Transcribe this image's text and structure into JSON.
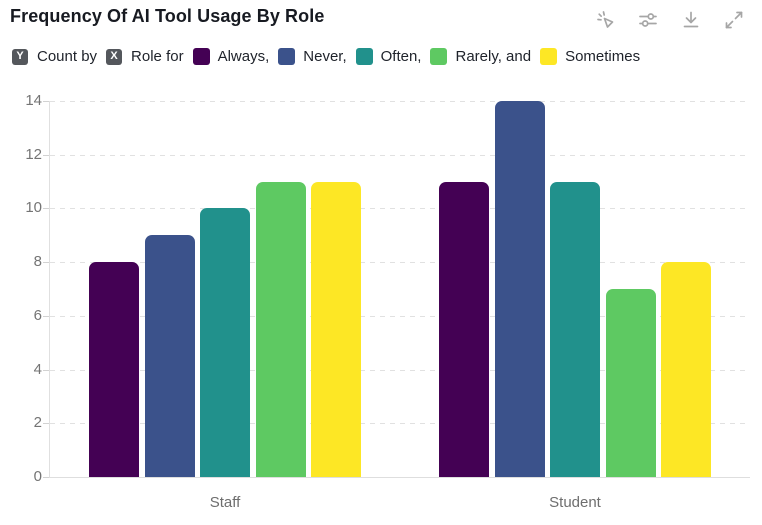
{
  "header": {
    "title": "Frequency Of AI Tool Usage By Role",
    "toolbar": {
      "icons": [
        {
          "name": "pointer-spark-icon",
          "meaning": "interact"
        },
        {
          "name": "sliders-icon",
          "meaning": "configure"
        },
        {
          "name": "download-icon",
          "meaning": "download"
        },
        {
          "name": "expand-icon",
          "meaning": "fullscreen"
        }
      ]
    }
  },
  "legend": {
    "y_badge": "Y",
    "y_text": "Count by",
    "x_badge": "X",
    "x_text": "Role for",
    "series": [
      {
        "label": "Always,",
        "color": "#440154"
      },
      {
        "label": "Never,",
        "color": "#3b528b"
      },
      {
        "label": "Often,",
        "color": "#21918c"
      },
      {
        "label": "Rarely, and",
        "color": "#5ec962"
      },
      {
        "label": "Sometimes",
        "color": "#fde725"
      }
    ]
  },
  "chart_data": {
    "type": "bar",
    "title": "Frequency Of AI Tool Usage By Role",
    "categories": [
      "Staff",
      "Student"
    ],
    "series": [
      {
        "name": "Always",
        "color": "#440154",
        "values": [
          8,
          11
        ]
      },
      {
        "name": "Never",
        "color": "#3b528b",
        "values": [
          9,
          14
        ]
      },
      {
        "name": "Often",
        "color": "#21918c",
        "values": [
          10,
          11
        ]
      },
      {
        "name": "Rarely",
        "color": "#5ec962",
        "values": [
          11,
          7
        ]
      },
      {
        "name": "Sometimes",
        "color": "#fde725",
        "values": [
          11,
          8
        ]
      }
    ],
    "xlabel": "Role",
    "ylabel": "Count",
    "ylim": [
      0,
      14
    ],
    "yticks": [
      0,
      2,
      4,
      6,
      8,
      10,
      12,
      14
    ],
    "grid": "dashed-horizontal",
    "legend_position": "top"
  },
  "colors": {
    "grid": "#e1e1e1",
    "axis": "#dedede",
    "tick_text": "#747474",
    "category_text": "#6e6e6e",
    "title_text": "#171a21",
    "legend_text": "#1e222a",
    "badge_bg": "#54575c",
    "toolbar_icon": "#a6a6a6"
  }
}
